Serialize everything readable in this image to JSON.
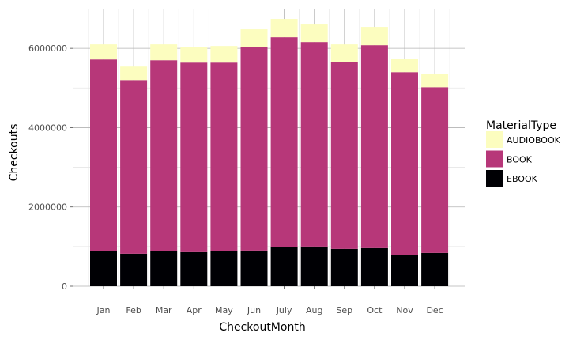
{
  "chart_data": {
    "type": "bar",
    "stacked": true,
    "categories": [
      "Jan",
      "Feb",
      "Mar",
      "Apr",
      "May",
      "Jun",
      "July",
      "Aug",
      "Sep",
      "Oct",
      "Nov",
      "Dec"
    ],
    "xlabel": "CheckoutMonth",
    "ylabel": "Checkouts",
    "ylim": [
      0,
      7000000
    ],
    "yticks": [
      0,
      2000000,
      4000000,
      6000000
    ],
    "ytick_labels": [
      "0",
      "2000000",
      "4000000",
      "6000000"
    ],
    "grid": true,
    "legend": {
      "title": "MaterialType",
      "placement": "right"
    },
    "series": [
      {
        "name": "EBOOK",
        "color": "#000004",
        "values": [
          880000,
          820000,
          880000,
          860000,
          880000,
          900000,
          980000,
          1000000,
          940000,
          960000,
          780000,
          840000
        ]
      },
      {
        "name": "BOOK",
        "color": "#b73779",
        "values": [
          4840000,
          4380000,
          4820000,
          4780000,
          4760000,
          5140000,
          5300000,
          5160000,
          4720000,
          5120000,
          4620000,
          4180000
        ]
      },
      {
        "name": "AUDIOBOOK",
        "color": "#fcfdbf",
        "values": [
          380000,
          340000,
          400000,
          400000,
          420000,
          440000,
          460000,
          460000,
          440000,
          460000,
          340000,
          340000
        ]
      }
    ],
    "legend_order": [
      "AUDIOBOOK",
      "BOOK",
      "EBOOK"
    ]
  }
}
